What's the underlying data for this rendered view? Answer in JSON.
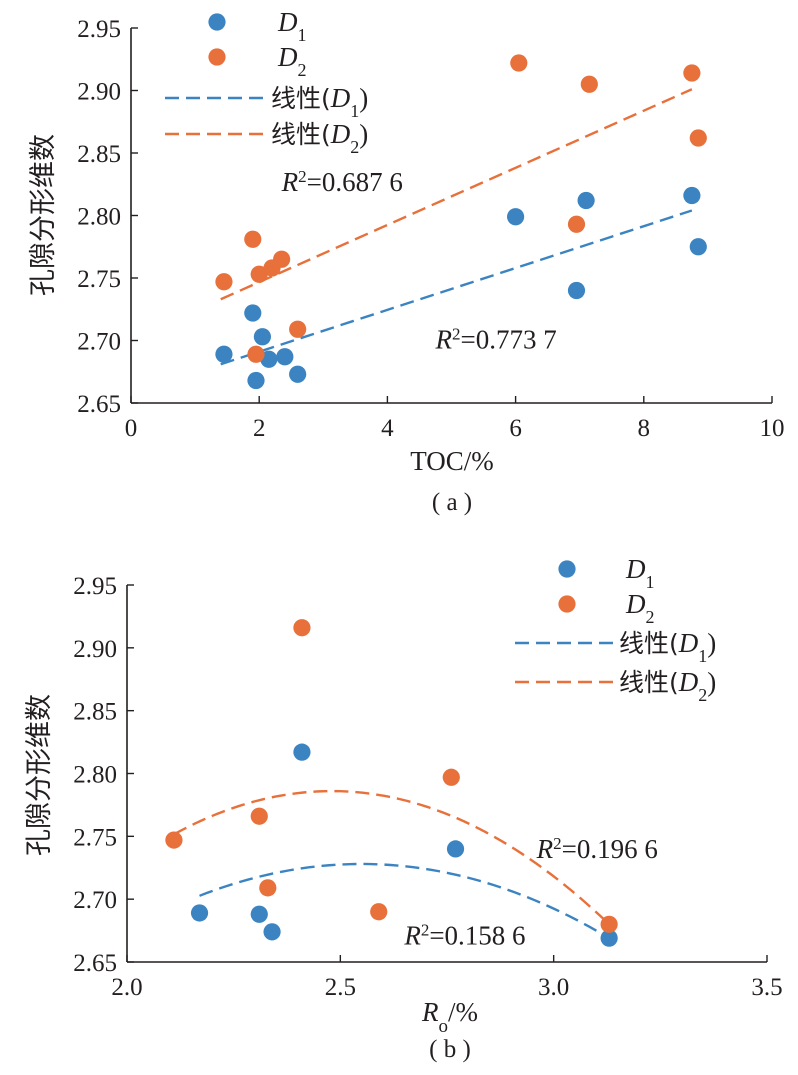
{
  "chart_data": [
    {
      "type": "scatter",
      "panel_label": "( a )",
      "xlabel": "TOC/%",
      "ylabel": "孔隙分形维数",
      "xlim": [
        0,
        10
      ],
      "ylim": [
        2.65,
        2.95
      ],
      "xticks": [
        "0",
        "2",
        "4",
        "6",
        "8",
        "10"
      ],
      "yticks": [
        "2.65",
        "2.70",
        "2.75",
        "2.80",
        "2.85",
        "2.90",
        "2.95"
      ],
      "legend": [
        {
          "label_main": "D",
          "label_sub": "1",
          "kind": "marker",
          "series": 0
        },
        {
          "label_main": "D",
          "label_sub": "2",
          "kind": "marker",
          "series": 1
        },
        {
          "label_prefix": "线性(",
          "label_main": "D",
          "label_sub": "1",
          "label_suffix": ")",
          "kind": "line",
          "series": 0
        },
        {
          "label_prefix": "线性(",
          "label_main": "D",
          "label_sub": "2",
          "label_suffix": ")",
          "kind": "line",
          "series": 1
        }
      ],
      "series": [
        {
          "name": "D1",
          "color": "#3b84c1",
          "points": [
            [
              1.45,
              2.689
            ],
            [
              1.9,
              2.722
            ],
            [
              1.95,
              2.668
            ],
            [
              2.05,
              2.703
            ],
            [
              2.15,
              2.685
            ],
            [
              2.4,
              2.687
            ],
            [
              2.6,
              2.673
            ],
            [
              6.0,
              2.799
            ],
            [
              6.95,
              2.74
            ],
            [
              7.1,
              2.812
            ],
            [
              8.75,
              2.816
            ],
            [
              8.85,
              2.775
            ]
          ],
          "fit": {
            "kind": "linear",
            "x": [
              1.4,
              8.75
            ],
            "y": [
              2.681,
              2.804
            ]
          }
        },
        {
          "name": "D2",
          "color": "#e8703a",
          "points": [
            [
              1.45,
              2.747
            ],
            [
              1.9,
              2.781
            ],
            [
              1.95,
              2.689
            ],
            [
              2.0,
              2.753
            ],
            [
              2.2,
              2.758
            ],
            [
              2.35,
              2.765
            ],
            [
              2.6,
              2.709
            ],
            [
              6.05,
              2.922
            ],
            [
              6.95,
              2.793
            ],
            [
              7.15,
              2.905
            ],
            [
              8.75,
              2.914
            ],
            [
              8.85,
              2.862
            ]
          ],
          "fit": {
            "kind": "linear",
            "x": [
              1.4,
              8.75
            ],
            "y": [
              2.733,
              2.901
            ]
          }
        }
      ],
      "annotations": [
        {
          "pre": "R",
          "sup": "2",
          "post": "=0.687 6",
          "x": 2.35,
          "y": 2.827
        },
        {
          "pre": "R",
          "sup": "2",
          "post": "=0.773 7",
          "x": 4.75,
          "y": 2.701
        }
      ]
    },
    {
      "type": "scatter",
      "panel_label": "( b )",
      "xlabel_main": "R",
      "xlabel_sub": "o",
      "xlabel_suffix": "/%",
      "ylabel": "孔隙分形维数",
      "xlim": [
        2.0,
        3.5
      ],
      "ylim": [
        2.65,
        2.95
      ],
      "xticks": [
        "2.0",
        "2.5",
        "3.0",
        "3.5"
      ],
      "yticks": [
        "2.65",
        "2.70",
        "2.75",
        "2.80",
        "2.85",
        "2.90",
        "2.95"
      ],
      "legend": [
        {
          "label_main": "D",
          "label_sub": "1",
          "kind": "marker",
          "series": 0
        },
        {
          "label_main": "D",
          "label_sub": "2",
          "kind": "marker",
          "series": 1
        },
        {
          "label_prefix": "线性(",
          "label_main": "D",
          "label_sub": "1",
          "label_suffix": ")",
          "kind": "line",
          "series": 0
        },
        {
          "label_prefix": "线性(",
          "label_main": "D",
          "label_sub": "2",
          "label_suffix": ")",
          "kind": "line",
          "series": 1
        }
      ],
      "series": [
        {
          "name": "D1",
          "color": "#3b84c1",
          "points": [
            [
              2.17,
              2.689
            ],
            [
              2.31,
              2.688
            ],
            [
              2.34,
              2.674
            ],
            [
              2.41,
              2.817
            ],
            [
              2.77,
              2.74
            ],
            [
              3.13,
              2.669
            ]
          ],
          "fit": {
            "kind": "quadratic",
            "x": [
              2.17,
              3.13
            ],
            "vertex": [
              2.55,
              2.728
            ]
          }
        },
        {
          "name": "D2",
          "color": "#e8703a",
          "points": [
            [
              2.11,
              2.747
            ],
            [
              2.31,
              2.766
            ],
            [
              2.33,
              2.709
            ],
            [
              2.41,
              2.916
            ],
            [
              2.59,
              2.69
            ],
            [
              2.76,
              2.797
            ],
            [
              3.13,
              2.68
            ]
          ],
          "fit": {
            "kind": "quadratic",
            "x": [
              2.11,
              3.13
            ],
            "vertex": [
              2.48,
              2.786
            ]
          }
        }
      ],
      "annotations": [
        {
          "pre": "R",
          "sup": "2",
          "post": "=0.196 6",
          "x": 2.96,
          "y": 2.74
        },
        {
          "pre": "R",
          "sup": "2",
          "post": "=0.158 6",
          "x": 2.65,
          "y": 2.671
        }
      ]
    }
  ]
}
